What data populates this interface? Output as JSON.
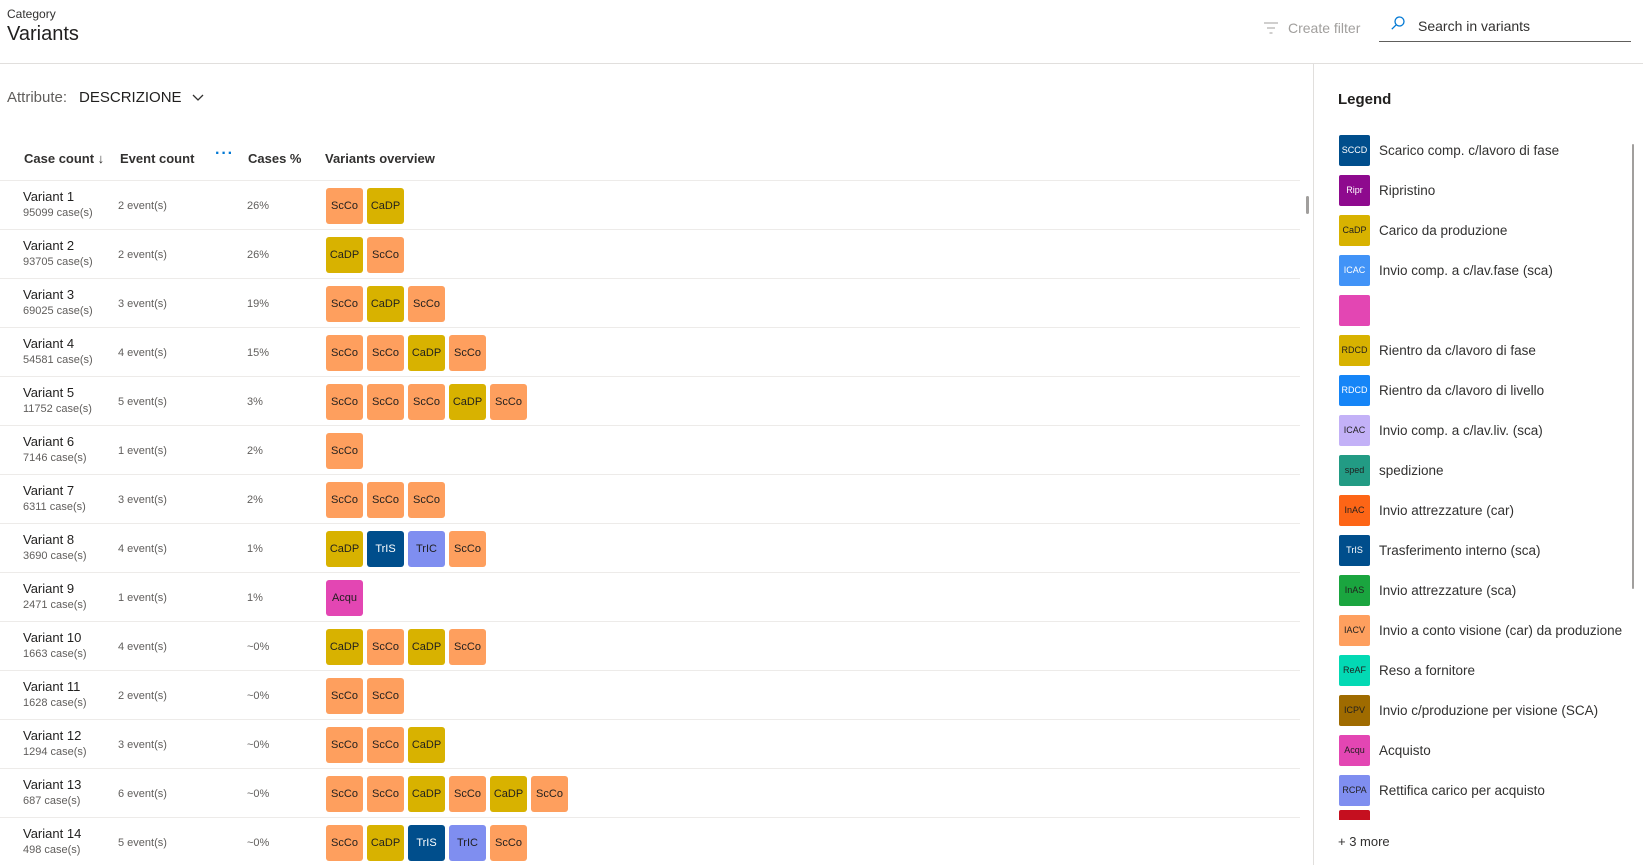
{
  "header": {
    "breadcrumb": "Category",
    "title": "Variants",
    "create_filter_label": "Create filter",
    "search_placeholder": "Search in variants"
  },
  "attribute": {
    "label": "Attribute:",
    "value": "DESCRIZIONE"
  },
  "table": {
    "columns": {
      "case_count": "Case count ↓",
      "event_count": "Event count",
      "more": "···",
      "cases_pct": "Cases %",
      "overview": "Variants overview"
    },
    "rows": [
      {
        "name": "Variant 1",
        "cases": "95099 case(s)",
        "events": "2 event(s)",
        "pct": "26%",
        "chips": [
          "ScCo",
          "CaDP"
        ]
      },
      {
        "name": "Variant 2",
        "cases": "93705 case(s)",
        "events": "2 event(s)",
        "pct": "26%",
        "chips": [
          "CaDP",
          "ScCo"
        ]
      },
      {
        "name": "Variant 3",
        "cases": "69025 case(s)",
        "events": "3 event(s)",
        "pct": "19%",
        "chips": [
          "ScCo",
          "CaDP",
          "ScCo"
        ]
      },
      {
        "name": "Variant 4",
        "cases": "54581 case(s)",
        "events": "4 event(s)",
        "pct": "15%",
        "chips": [
          "ScCo",
          "ScCo",
          "CaDP",
          "ScCo"
        ]
      },
      {
        "name": "Variant 5",
        "cases": "11752 case(s)",
        "events": "5 event(s)",
        "pct": "3%",
        "chips": [
          "ScCo",
          "ScCo",
          "ScCo",
          "CaDP",
          "ScCo"
        ]
      },
      {
        "name": "Variant 6",
        "cases": "7146 case(s)",
        "events": "1 event(s)",
        "pct": "2%",
        "chips": [
          "ScCo"
        ]
      },
      {
        "name": "Variant 7",
        "cases": "6311 case(s)",
        "events": "3 event(s)",
        "pct": "2%",
        "chips": [
          "ScCo",
          "ScCo",
          "ScCo"
        ]
      },
      {
        "name": "Variant 8",
        "cases": "3690 case(s)",
        "events": "4 event(s)",
        "pct": "1%",
        "chips": [
          "CaDP",
          "TrIS",
          "TrIC",
          "ScCo"
        ]
      },
      {
        "name": "Variant 9",
        "cases": "2471 case(s)",
        "events": "1 event(s)",
        "pct": "1%",
        "chips": [
          "Acqu"
        ]
      },
      {
        "name": "Variant 10",
        "cases": "1663 case(s)",
        "events": "4 event(s)",
        "pct": "~0%",
        "chips": [
          "CaDP",
          "ScCo",
          "CaDP",
          "ScCo"
        ]
      },
      {
        "name": "Variant 11",
        "cases": "1628 case(s)",
        "events": "2 event(s)",
        "pct": "~0%",
        "chips": [
          "ScCo",
          "ScCo"
        ]
      },
      {
        "name": "Variant 12",
        "cases": "1294 case(s)",
        "events": "3 event(s)",
        "pct": "~0%",
        "chips": [
          "ScCo",
          "ScCo",
          "CaDP"
        ]
      },
      {
        "name": "Variant 13",
        "cases": "687 case(s)",
        "events": "6 event(s)",
        "pct": "~0%",
        "chips": [
          "ScCo",
          "ScCo",
          "CaDP",
          "ScCo",
          "CaDP",
          "ScCo"
        ]
      },
      {
        "name": "Variant 14",
        "cases": "498 case(s)",
        "events": "5 event(s)",
        "pct": "~0%",
        "chips": [
          "ScCo",
          "CaDP",
          "TrIS",
          "TrIC",
          "ScCo"
        ]
      }
    ]
  },
  "chip_colors": {
    "ScCo": {
      "bg": "#fe9f5e",
      "dark": false
    },
    "CaDP": {
      "bg": "#d8b200",
      "dark": false
    },
    "TrIS": {
      "bg": "#004e8c",
      "dark": true
    },
    "TrIC": {
      "bg": "#7f8ef0",
      "dark": false
    },
    "Acqu": {
      "bg": "#e346b3",
      "dark": false
    }
  },
  "legend": {
    "title": "Legend",
    "items": [
      {
        "abbr": "SCCD",
        "label": "Scarico comp. c/lavoro di fase",
        "color": "#004e8c",
        "dark": true
      },
      {
        "abbr": "Ripr",
        "label": "Ripristino",
        "color": "#8e0a8e",
        "dark": true
      },
      {
        "abbr": "CaDP",
        "label": "Carico da produzione",
        "color": "#d8b200",
        "dark": false
      },
      {
        "abbr": "ICAC",
        "label": "Invio comp. a c/lav.fase (sca)",
        "color": "#4193f7",
        "dark": true
      },
      {
        "abbr": "",
        "label": "",
        "color": "#e346b3",
        "dark": false
      },
      {
        "abbr": "RDCD",
        "label": "Rientro da c/lavoro di fase",
        "color": "#d8b200",
        "dark": false
      },
      {
        "abbr": "RDCD",
        "label": "Rientro da c/lavoro di livello",
        "color": "#1585f7",
        "dark": true
      },
      {
        "abbr": "ICAC",
        "label": "Invio comp. a c/lav.liv. (sca)",
        "color": "#c3b1f7",
        "dark": false
      },
      {
        "abbr": "sped",
        "label": "spedizione",
        "color": "#229b84",
        "dark": false
      },
      {
        "abbr": "InAC",
        "label": "Invio attrezzature (car)",
        "color": "#fd6516",
        "dark": false
      },
      {
        "abbr": "TrIS",
        "label": "Trasferimento interno (sca)",
        "color": "#004e8c",
        "dark": true
      },
      {
        "abbr": "InAS",
        "label": "Invio attrezzature (sca)",
        "color": "#1aa53f",
        "dark": false
      },
      {
        "abbr": "IACV",
        "label": "Invio a conto visione (car) da produzione",
        "color": "#fe9f5e",
        "dark": false
      },
      {
        "abbr": "ReAF",
        "label": "Reso a fornitore",
        "color": "#03d9b4",
        "dark": false
      },
      {
        "abbr": "ICPV",
        "label": "Invio c/produzione per visione (SCA)",
        "color": "#9f6b00",
        "dark": false
      },
      {
        "abbr": "Acqu",
        "label": "Acquisto",
        "color": "#e346b3",
        "dark": false
      },
      {
        "abbr": "RCPA",
        "label": "Rettifica carico per acquisto",
        "color": "#7f8ef0",
        "dark": false
      }
    ],
    "more": "+ 3 more"
  }
}
